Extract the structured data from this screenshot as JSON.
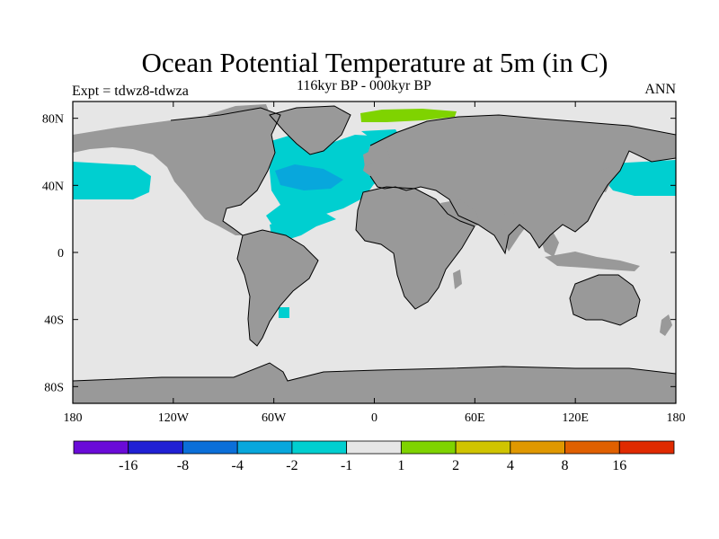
{
  "title": "Ocean Potential Temperature at 5m (in C)",
  "left_string": "Expt = tdwz8-tdwza",
  "center_string": "116kyr BP - 000kyr BP",
  "right_string": "ANN",
  "map": {
    "projection": "cylindrical-equidistant",
    "lon_range": [
      -180,
      180
    ],
    "lat_range": [
      -90,
      90
    ],
    "lat_ticks": [
      {
        "value": 80,
        "label": "80N"
      },
      {
        "value": 40,
        "label": "40N"
      },
      {
        "value": 0,
        "label": "0"
      },
      {
        "value": -40,
        "label": "40S"
      },
      {
        "value": -80,
        "label": "80S"
      }
    ],
    "lon_ticks": [
      {
        "value": -180,
        "label": "180"
      },
      {
        "value": -120,
        "label": "120W"
      },
      {
        "value": -60,
        "label": "60W"
      },
      {
        "value": 0,
        "label": "0"
      },
      {
        "value": 60,
        "label": "60E"
      },
      {
        "value": 120,
        "label": "120E"
      },
      {
        "value": 180,
        "label": "180"
      }
    ],
    "colors": {
      "ocean_background": "#e6e6e6",
      "land": "#999999",
      "coastline": "#000000"
    }
  },
  "colorbar": {
    "levels": [
      "-16",
      "-8",
      "-4",
      "-2",
      "-1",
      "1",
      "2",
      "4",
      "8",
      "16"
    ],
    "colors": [
      "#6a0bd8",
      "#2020d4",
      "#0b6fd9",
      "#08a7dc",
      "#00cfd0",
      "#e6e6e6",
      "#7fd300",
      "#d0c400",
      "#e09800",
      "#e06000",
      "#e02a00"
    ]
  }
}
